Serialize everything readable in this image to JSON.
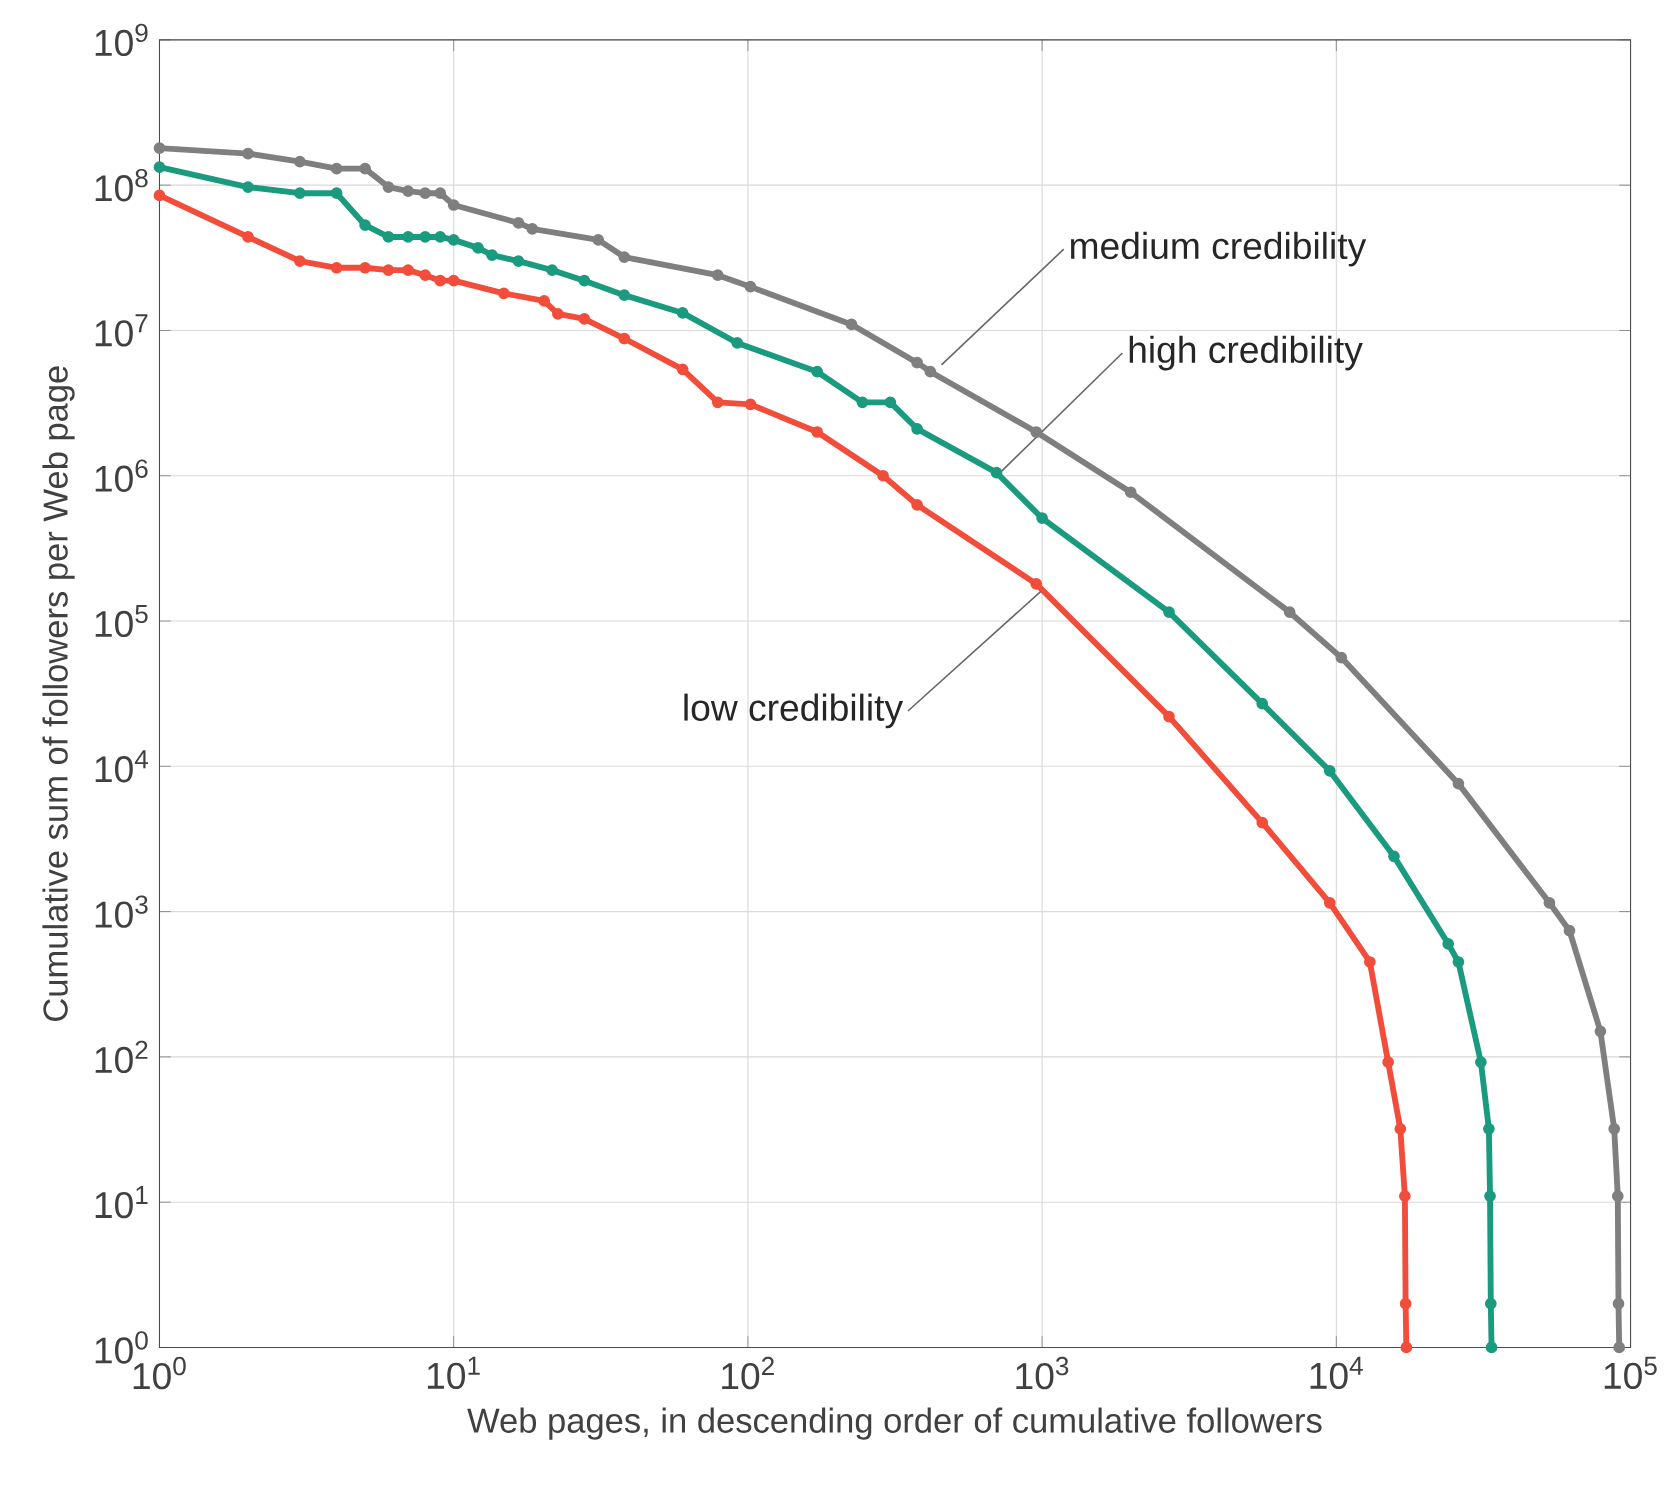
{
  "chart_data": {
    "type": "line",
    "xlabel": "Web pages, in descending order of cumulative followers",
    "ylabel": "Cumulative sum of followers per Web page",
    "log": "xy",
    "grid": true,
    "marker": "circle",
    "line_style": "solid",
    "xlim": [
      1,
      100000
    ],
    "ylim": [
      1,
      1000000000
    ],
    "xticks": [
      {
        "value": 1,
        "label": "10$^{0}$"
      },
      {
        "value": 10,
        "label": "10$^{1}$"
      },
      {
        "value": 100,
        "label": "10$^{2}$"
      },
      {
        "value": 1000,
        "label": "10$^{3}$"
      },
      {
        "value": 10000,
        "label": "10$^{4}$"
      },
      {
        "value": 100000,
        "label": "10$^{5}$"
      }
    ],
    "yticks": [
      {
        "value": 1,
        "label": "10$^{0}$"
      },
      {
        "value": 10,
        "label": "10$^{1}$"
      },
      {
        "value": 100,
        "label": "10$^{2}$"
      },
      {
        "value": 1000,
        "label": "10$^{3}$"
      },
      {
        "value": 10000,
        "label": "10$^{4}$"
      },
      {
        "value": 100000,
        "label": "10$^{5}$"
      },
      {
        "value": 1000000,
        "label": "10$^{6}$"
      },
      {
        "value": 10000000,
        "label": "10$^{7}$"
      },
      {
        "value": 100000000,
        "label": "10$^{8}$"
      },
      {
        "value": 1000000000,
        "label": "10$^{9}$"
      }
    ],
    "series": [
      {
        "color": "#7f7f7f",
        "x": [
          1,
          2,
          3,
          4,
          5,
          6,
          7,
          8,
          9,
          10,
          16.6,
          18.5,
          31,
          38,
          79,
          102,
          225,
          376,
          417,
          955,
          2000,
          6940,
          10400,
          26000,
          53000,
          62000,
          79000,
          88000,
          90500,
          91000,
          91500
        ],
        "values": [
          180000000,
          165000000,
          145000000,
          130000000,
          130000000,
          97000000,
          91000000,
          88000000,
          88000000,
          73000000,
          55000000,
          50000000,
          42000000,
          32000000,
          24000000,
          20000000,
          11000000,
          6000000,
          5200000,
          2000000,
          770000,
          115000,
          56000,
          7600,
          1150,
          740,
          150,
          32,
          11,
          2,
          1
        ]
      },
      {
        "color": "#1a9a7e",
        "x": [
          1,
          2,
          3,
          4,
          5,
          6,
          7,
          8,
          9,
          10,
          12.1,
          13.5,
          16.6,
          21.6,
          27.8,
          38,
          60,
          92,
          172,
          245,
          305,
          376,
          700,
          1000,
          2700,
          5600,
          9500,
          15700,
          24000,
          26000,
          31000,
          33000,
          33300,
          33500,
          33700
        ],
        "values": [
          133000000,
          97000000,
          88000000,
          88000000,
          53000000,
          44000000,
          44000000,
          44000000,
          44000000,
          42000000,
          37000000,
          33000000,
          30000000,
          26000000,
          22000000,
          17500000,
          13200000,
          8200000,
          5200000,
          3200000,
          3200000,
          2100000,
          1050000,
          510000,
          115000,
          27000,
          9300,
          2400,
          600,
          450,
          92,
          32,
          11,
          2,
          1
        ]
      },
      {
        "color": "#f24c3a",
        "x": [
          1,
          2,
          3,
          4,
          5,
          6,
          7,
          8,
          9,
          10,
          14.8,
          20.3,
          22.6,
          27.8,
          38,
          60,
          79,
          102,
          172,
          288,
          376,
          955,
          2700,
          5600,
          9500,
          13000,
          15000,
          16500,
          17100,
          17200,
          17300
        ],
        "values": [
          85000000,
          44000000,
          30000000,
          27000000,
          27000000,
          26000000,
          26000000,
          24000000,
          22000000,
          22000000,
          18000000,
          16000000,
          13000000,
          12000000,
          8800000,
          5400000,
          3200000,
          3100000,
          2000000,
          1000000,
          630000,
          180000,
          22000,
          4100,
          1150,
          450,
          92,
          32,
          11,
          2,
          1
        ]
      }
    ],
    "annotations": [
      {
        "text": "medium credibility",
        "x": 455,
        "y": 5800000
      },
      {
        "text": "high credibility",
        "x": 720,
        "y": 1050000
      },
      {
        "text": "low credibility",
        "x": 990,
        "y": 160000
      }
    ]
  }
}
